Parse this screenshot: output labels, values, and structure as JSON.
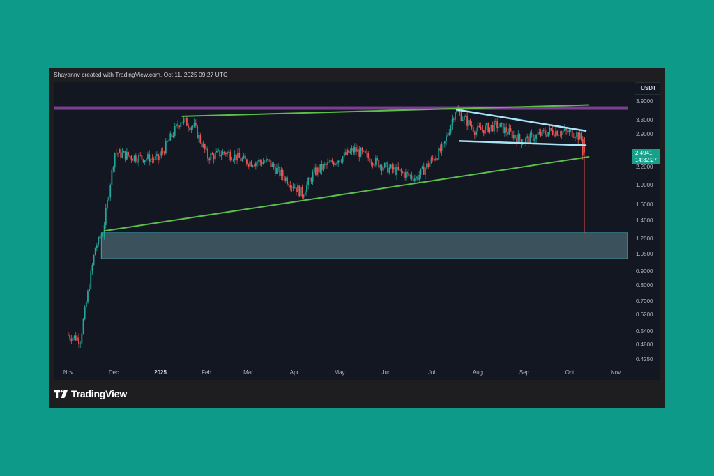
{
  "header": {
    "attribution": "Shayannv created with TradingView.com, Oct 11, 2025 09:27 UTC"
  },
  "price_axis": {
    "currency": "USDT",
    "labels": [
      "3.9000",
      "3.3000",
      "2.9000",
      "2.2000",
      "1.9000",
      "1.6000",
      "1.4000",
      "1.2000",
      "1.0500",
      "0.9000",
      "0.8000",
      "0.7000",
      "0.6200",
      "0.5400",
      "0.4800",
      "0.4250"
    ],
    "last_price": "2.4941",
    "countdown": "14:32:27"
  },
  "time_axis": {
    "labels": [
      "Nov",
      "Dec",
      "2025",
      "Feb",
      "Mar",
      "Apr",
      "May",
      "Jun",
      "Jul",
      "Aug",
      "Sep",
      "Oct",
      "Nov"
    ]
  },
  "footer": {
    "brand": "TradingView"
  },
  "colors": {
    "background": "#0e9a88",
    "chart_bg": "#131722",
    "up": "#26a69a",
    "down": "#ef5350",
    "trendline_green": "#5bbf4a",
    "wedge_lightblue": "#a8e4f5",
    "resistance_purple": "#7b3f8f",
    "demand_zone": "#4a6670"
  },
  "chart_data": {
    "type": "candlestick",
    "title": "Shayannv created with TradingView.com, Oct 11, 2025 09:27 UTC",
    "quote_currency": "USDT",
    "scale": "log",
    "ylim": [
      0.4,
      4.3
    ],
    "y_ticks": [
      3.9,
      3.3,
      2.9,
      2.2,
      1.9,
      1.6,
      1.4,
      1.2,
      1.05,
      0.9,
      0.8,
      0.7,
      0.62,
      0.54,
      0.48,
      0.425
    ],
    "x_ticks": [
      "Nov",
      "Dec",
      "2025",
      "Feb",
      "Mar",
      "Apr",
      "May",
      "Jun",
      "Jul",
      "Aug",
      "Sep",
      "Oct",
      "Nov"
    ],
    "last_price": 2.4941,
    "approx_path": [
      {
        "date": "2024-11-01",
        "close": 0.52
      },
      {
        "date": "2024-11-10",
        "close": 0.5
      },
      {
        "date": "2024-11-20",
        "close": 1.1
      },
      {
        "date": "2024-11-25",
        "close": 1.25
      },
      {
        "date": "2024-12-03",
        "close": 2.5
      },
      {
        "date": "2024-12-15",
        "close": 2.4
      },
      {
        "date": "2025-01-01",
        "close": 2.35
      },
      {
        "date": "2025-01-16",
        "close": 3.3
      },
      {
        "date": "2025-01-25",
        "close": 3.1
      },
      {
        "date": "2025-02-03",
        "close": 2.4
      },
      {
        "date": "2025-02-15",
        "close": 2.5
      },
      {
        "date": "2025-03-01",
        "close": 2.3
      },
      {
        "date": "2025-03-15",
        "close": 2.3
      },
      {
        "date": "2025-04-07",
        "close": 1.75
      },
      {
        "date": "2025-04-15",
        "close": 2.1
      },
      {
        "date": "2025-05-12",
        "close": 2.55
      },
      {
        "date": "2025-06-01",
        "close": 2.2
      },
      {
        "date": "2025-06-22",
        "close": 2.0
      },
      {
        "date": "2025-07-10",
        "close": 2.6
      },
      {
        "date": "2025-07-18",
        "close": 3.6
      },
      {
        "date": "2025-08-01",
        "close": 3.0
      },
      {
        "date": "2025-08-15",
        "close": 3.15
      },
      {
        "date": "2025-09-01",
        "close": 2.75
      },
      {
        "date": "2025-09-20",
        "close": 3.0
      },
      {
        "date": "2025-10-06",
        "close": 2.95
      },
      {
        "date": "2025-10-10",
        "close": 2.8
      },
      {
        "date": "2025-10-11",
        "close": 2.4941,
        "low": 1.25
      }
    ],
    "annotations": [
      {
        "type": "horizontal_line",
        "label": "resistance",
        "price": 3.65,
        "color": "#7b3f8f"
      },
      {
        "type": "trendline",
        "label": "upper rising line",
        "from": {
          "date": "2025-01-16",
          "price": 3.4
        },
        "to": {
          "date": "2025-10-14",
          "price": 3.75
        },
        "color": "#5bbf4a"
      },
      {
        "type": "trendline",
        "label": "lower rising support",
        "from": {
          "date": "2024-11-25",
          "price": 1.27
        },
        "to": {
          "date": "2025-10-14",
          "price": 2.4
        },
        "color": "#5bbf4a"
      },
      {
        "type": "trendline",
        "label": "wedge upper",
        "from": {
          "date": "2025-07-18",
          "price": 3.6
        },
        "to": {
          "date": "2025-10-12",
          "price": 3.0
        },
        "color": "#a8e4f5"
      },
      {
        "type": "trendline",
        "label": "wedge lower",
        "from": {
          "date": "2025-07-20",
          "price": 2.75
        },
        "to": {
          "date": "2025-10-12",
          "price": 2.65
        },
        "color": "#a8e4f5"
      },
      {
        "type": "zone",
        "label": "demand zone",
        "price_top": 1.25,
        "price_bottom": 1.0,
        "color": "#4a6670"
      }
    ]
  }
}
